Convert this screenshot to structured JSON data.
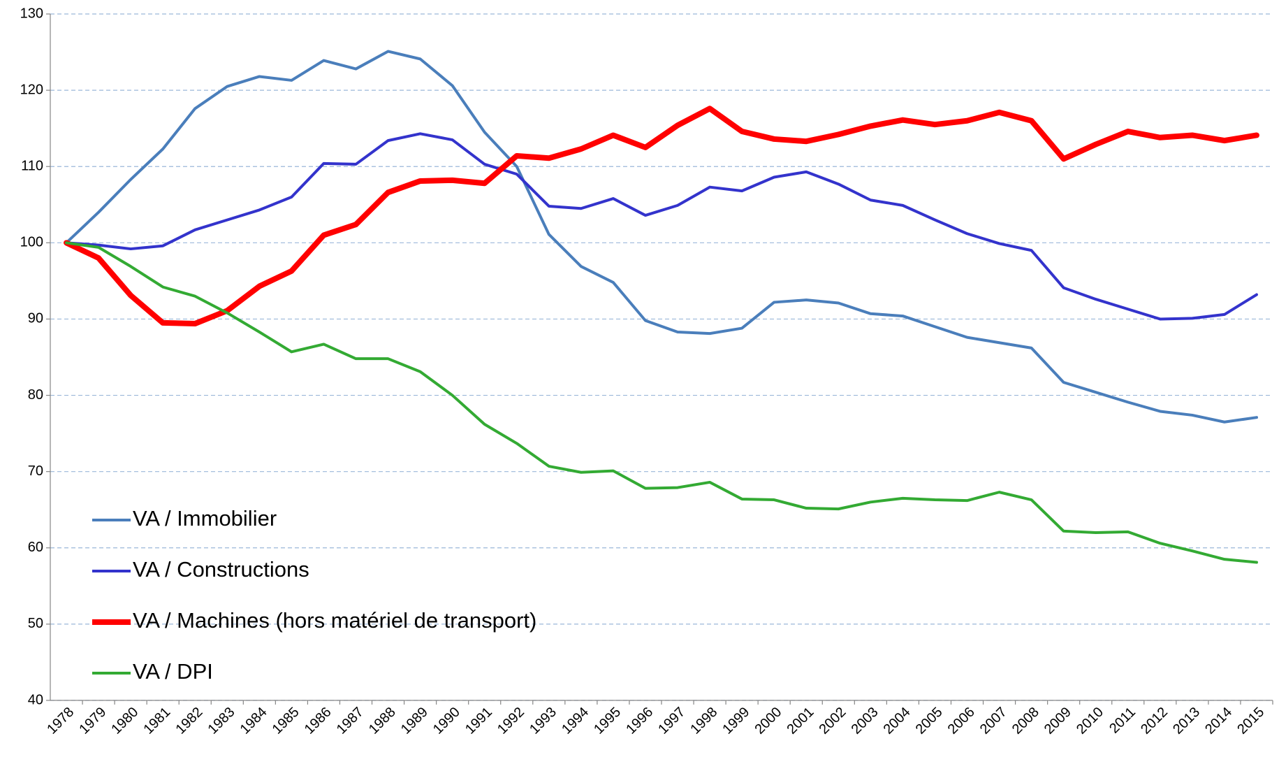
{
  "chart_data": {
    "type": "line",
    "categories": [
      "1978",
      "1979",
      "1980",
      "1981",
      "1982",
      "1983",
      "1984",
      "1985",
      "1986",
      "1987",
      "1988",
      "1989",
      "1990",
      "1991",
      "1992",
      "1993",
      "1994",
      "1995",
      "1996",
      "1997",
      "1998",
      "1999",
      "2000",
      "2001",
      "2002",
      "2003",
      "2004",
      "2005",
      "2006",
      "2007",
      "2008",
      "2009",
      "2010",
      "2011",
      "2012",
      "2013",
      "2014",
      "2015"
    ],
    "series": [
      {
        "name": "VA / Immobilier",
        "color": "#4a7ebb",
        "width": 4,
        "values": [
          100,
          104,
          108.3,
          112.3,
          117.6,
          120.5,
          121.8,
          121.3,
          123.9,
          122.8,
          125.1,
          124.1,
          120.6,
          114.5,
          110,
          101.1,
          96.9,
          94.8,
          89.8,
          88.3,
          88.1,
          88.8,
          92.2,
          92.5,
          92.1,
          90.7,
          90.4,
          89,
          87.6,
          86.9,
          86.2,
          81.7,
          80.4,
          79.1,
          77.9,
          77.4,
          76.5,
          77.1
        ]
      },
      {
        "name": "VA / Constructions",
        "color": "#3333cc",
        "width": 4,
        "values": [
          100,
          99.7,
          99.2,
          99.6,
          101.7,
          103,
          104.3,
          106,
          110.4,
          110.3,
          113.4,
          114.3,
          113.5,
          110.3,
          109,
          104.8,
          104.5,
          105.8,
          103.6,
          104.9,
          107.3,
          106.8,
          108.6,
          109.3,
          107.7,
          105.6,
          104.9,
          103,
          101.2,
          99.9,
          99,
          94.1,
          92.6,
          91.3,
          90,
          90.1,
          90.6,
          93.2
        ]
      },
      {
        "name": "VA / Machines (hors matériel de transport)",
        "color": "#ff0000",
        "width": 8,
        "values": [
          100,
          98,
          93.1,
          89.5,
          89.4,
          91.1,
          94.3,
          96.3,
          101,
          102.4,
          106.6,
          108.1,
          108.2,
          107.8,
          111.4,
          111.1,
          112.3,
          114.1,
          112.5,
          115.4,
          117.6,
          114.6,
          113.6,
          113.3,
          114.2,
          115.3,
          116.1,
          115.5,
          116,
          117.1,
          116,
          111,
          112.9,
          114.6,
          113.8,
          114.1,
          113.4,
          114.1
        ]
      },
      {
        "name": "VA / DPI",
        "color": "#33aa33",
        "width": 4,
        "values": [
          100,
          99.4,
          96.9,
          94.2,
          93,
          90.8,
          88.3,
          85.7,
          86.7,
          84.8,
          84.8,
          83.1,
          80,
          76.2,
          73.7,
          70.7,
          69.9,
          70.1,
          67.8,
          67.9,
          68.6,
          66.4,
          66.3,
          65.2,
          65.1,
          66,
          66.5,
          66.3,
          66.2,
          67.3,
          66.3,
          62.2,
          62,
          62.1,
          60.6,
          59.6,
          58.5,
          58.1
        ]
      }
    ],
    "ylim": [
      40,
      130
    ],
    "yticks": [
      40,
      50,
      60,
      70,
      80,
      90,
      100,
      110,
      120,
      130
    ],
    "grid": true,
    "legend": "lower left"
  }
}
